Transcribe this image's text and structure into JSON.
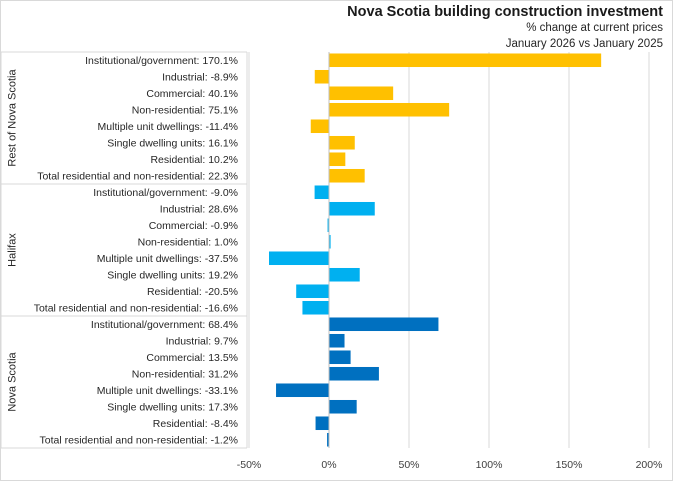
{
  "chart_data": {
    "type": "bar",
    "orientation": "horizontal",
    "title": "Nova Scotia building construction investment",
    "subtitle_lines": [
      "% change at current prices",
      "January 2026 vs January 2025"
    ],
    "xlabel": "",
    "ylabel": "",
    "xlim": [
      -50,
      200
    ],
    "xticks": [
      -50,
      0,
      50,
      100,
      150,
      200
    ],
    "xtick_labels": [
      "-50%",
      "0%",
      "50%",
      "100%",
      "150%",
      "200%"
    ],
    "grid": "vertical",
    "legend": "none",
    "groups": [
      {
        "name": "Rest of Nova Scotia",
        "color": "#FFC000",
        "categories": [
          "Institutional/government: 170.1%",
          "Industrial: -8.9%",
          "Commercial: 40.1%",
          "Non-residential: 75.1%",
          "Multiple unit dwellings: -11.4%",
          "Single dwelling units: 16.1%",
          "Residential: 10.2%",
          "Total residential and non-residential: 22.3%"
        ],
        "values": [
          170.1,
          -8.9,
          40.1,
          75.1,
          -11.4,
          16.1,
          10.2,
          22.3
        ]
      },
      {
        "name": "Halifax",
        "color": "#00B0F0",
        "categories": [
          "Institutional/government: -9.0%",
          "Industrial: 28.6%",
          "Commercial: -0.9%",
          "Non-residential: 1.0%",
          "Multiple unit dwellings: -37.5%",
          "Single dwelling units: 19.2%",
          "Residential: -20.5%",
          "Total residential and non-residential: -16.6%"
        ],
        "values": [
          -9.0,
          28.6,
          -0.9,
          1.0,
          -37.5,
          19.2,
          -20.5,
          -16.6
        ]
      },
      {
        "name": "Nova Scotia",
        "color": "#0070C0",
        "categories": [
          "Institutional/government: 68.4%",
          "Industrial: 9.7%",
          "Commercial: 13.5%",
          "Non-residential: 31.2%",
          "Multiple unit dwellings: -33.1%",
          "Single dwelling units: 17.3%",
          "Residential: -8.4%",
          "Total residential and non-residential: -1.2%"
        ],
        "values": [
          68.4,
          9.7,
          13.5,
          31.2,
          -33.1,
          17.3,
          -8.4,
          -1.2
        ]
      }
    ]
  }
}
